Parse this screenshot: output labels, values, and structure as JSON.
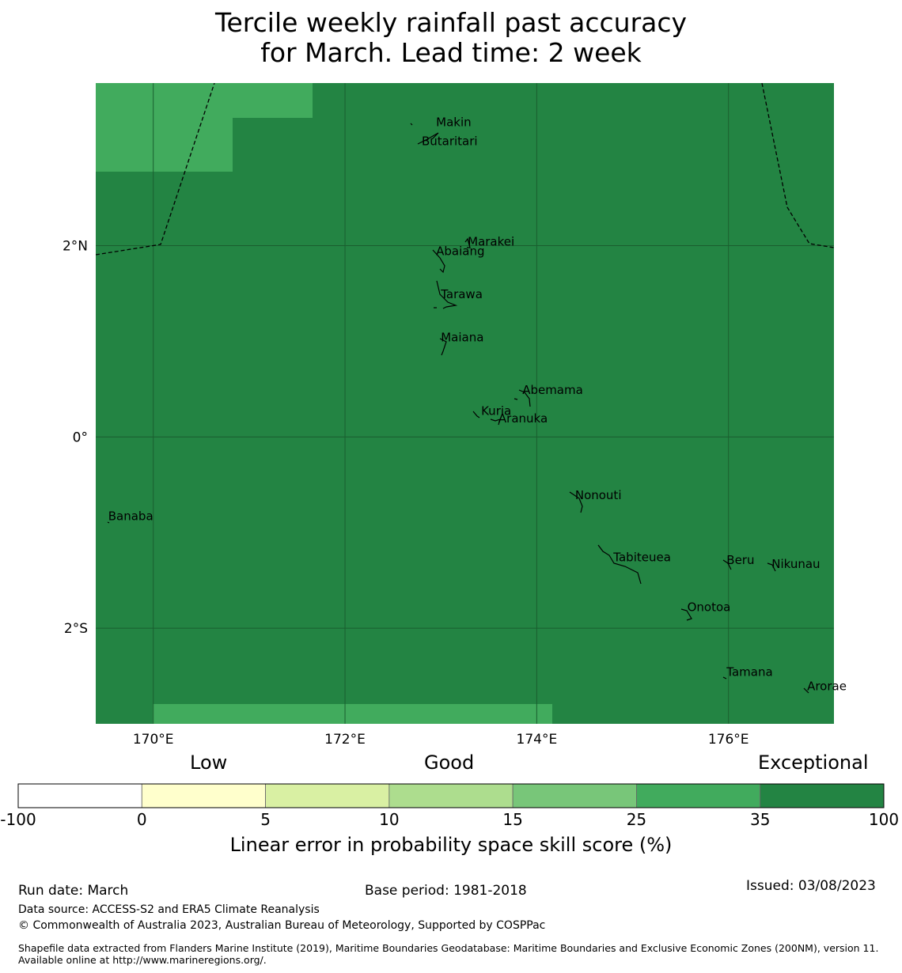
{
  "title": {
    "line1": "Tercile weekly rainfall past accuracy",
    "line2": "for March. Lead time: 2 week"
  },
  "map": {
    "lon_range": [
      169.4,
      177.1
    ],
    "lat_range": [
      -3.0,
      3.7
    ],
    "lon_ticks": [
      {
        "value": 170,
        "label": "170°E"
      },
      {
        "value": 172,
        "label": "172°E"
      },
      {
        "value": 174,
        "label": "174°E"
      },
      {
        "value": 176,
        "label": "176°E"
      }
    ],
    "lat_ticks": [
      {
        "value": 2,
        "label": "2°N"
      },
      {
        "value": 0,
        "label": "0°"
      },
      {
        "value": -2,
        "label": "2°S"
      }
    ],
    "base_color": "#238443",
    "patch_color": "#41ab5d",
    "islands": [
      {
        "name": "Makin",
        "lon": 172.95,
        "lat": 3.25
      },
      {
        "name": "Butaritari",
        "lon": 172.8,
        "lat": 3.05
      },
      {
        "name": "Marakei",
        "lon": 173.28,
        "lat": 2.0
      },
      {
        "name": "Abaiang",
        "lon": 172.95,
        "lat": 1.9
      },
      {
        "name": "Tarawa",
        "lon": 173.0,
        "lat": 1.45
      },
      {
        "name": "Maiana",
        "lon": 173.0,
        "lat": 1.0
      },
      {
        "name": "Abemama",
        "lon": 173.85,
        "lat": 0.45
      },
      {
        "name": "Kuria",
        "lon": 173.42,
        "lat": 0.23
      },
      {
        "name": "Aranuka",
        "lon": 173.6,
        "lat": 0.15
      },
      {
        "name": "Nonouti",
        "lon": 174.4,
        "lat": -0.65
      },
      {
        "name": "Banaba",
        "lon": 169.53,
        "lat": -0.87
      },
      {
        "name": "Tabiteuea",
        "lon": 174.8,
        "lat": -1.3
      },
      {
        "name": "Beru",
        "lon": 175.98,
        "lat": -1.33
      },
      {
        "name": "Nikunau",
        "lon": 176.45,
        "lat": -1.37
      },
      {
        "name": "Onotoa",
        "lon": 175.57,
        "lat": -1.82
      },
      {
        "name": "Tamana",
        "lon": 175.98,
        "lat": -2.5
      },
      {
        "name": "Arorae",
        "lon": 176.82,
        "lat": -2.65
      }
    ]
  },
  "colorbar": {
    "category_labels": {
      "low": "Low",
      "good": "Good",
      "exceptional": "Exceptional"
    },
    "bins": [
      {
        "from": "-100",
        "to": "0",
        "color": "#ffffff"
      },
      {
        "from": "0",
        "to": "5",
        "color": "#ffffcc"
      },
      {
        "from": "5",
        "to": "10",
        "color": "#d9f0a3"
      },
      {
        "from": "10",
        "to": "15",
        "color": "#addd8e"
      },
      {
        "from": "15",
        "to": "25",
        "color": "#78c679"
      },
      {
        "from": "25",
        "to": "35",
        "color": "#41ab5d"
      },
      {
        "from": "35",
        "to": "100",
        "color": "#238443"
      }
    ],
    "ticks": [
      "-100",
      "0",
      "5",
      "10",
      "15",
      "25",
      "35",
      "100"
    ],
    "axis_title": "Linear error in probability space skill score (%)"
  },
  "footer": {
    "run_date": "Run date: March",
    "base_period": "Base period: 1981-2018",
    "issued": "Issued: 03/08/2023",
    "data_source": "Data source: ACCESS-S2 and ERA5 Climate Reanalysis",
    "copyright": "© Commonwealth of Australia 2023, Australian Bureau of Meteorology, Supported by COSPPac",
    "shapefile": "Shapefile data extracted from Flanders Marine Institute (2019), Maritime Boundaries Geodatabase: Maritime Boundaries and Exclusive Economic Zones (200NM), version 11. Available online at http://www.marineregions.org/."
  }
}
